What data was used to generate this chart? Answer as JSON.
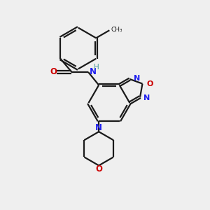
{
  "bg_color": "#efefef",
  "bond_color": "#1a1a1a",
  "N_color": "#2020ee",
  "O_color": "#cc0000",
  "H_color": "#4a9a9a",
  "lw": 1.6,
  "dbg": 0.055,
  "figsize": [
    3.0,
    3.0
  ],
  "dpi": 100,
  "xlim": [
    0,
    10
  ],
  "ylim": [
    0,
    10
  ]
}
